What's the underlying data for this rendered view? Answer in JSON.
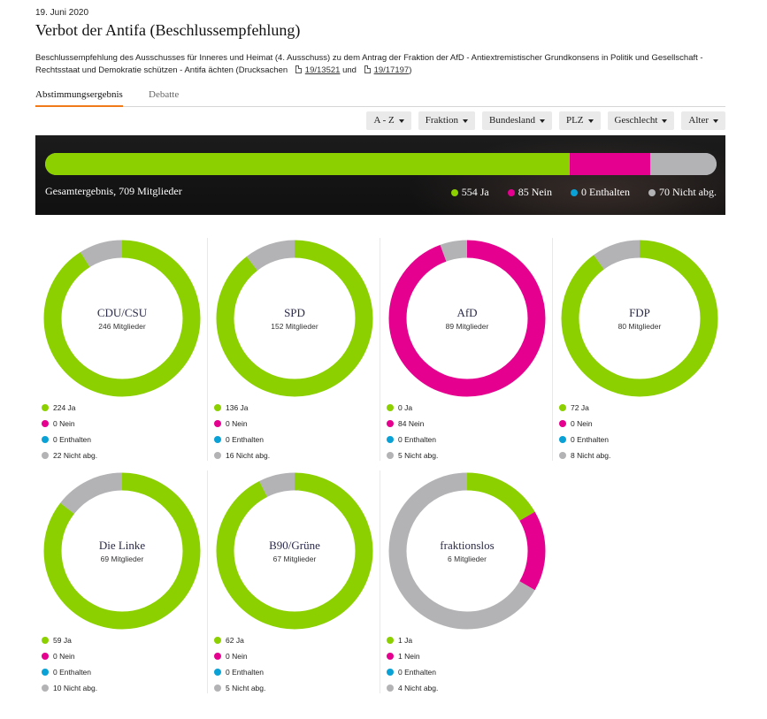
{
  "header": {
    "date": "19. Juni 2020",
    "title": "Verbot der Antifa (Beschlussempfehlung)",
    "description": "Beschlussempfehlung des Ausschusses für Inneres und Heimat (4. Ausschuss) zu dem Antrag der Fraktion der AfD - Antiextremistischer Grundkonsens in Politik und Gesellschaft - Rechtsstaat und Demokratie schützen - Antifa ächten (Drucksachen",
    "doc1": "19/13521",
    "doc_sep": "und",
    "doc2": "19/17197",
    "desc_end": ")"
  },
  "tabs": [
    {
      "label": "Abstimmungsergebnis",
      "active": true
    },
    {
      "label": "Debatte",
      "active": false
    }
  ],
  "filters": [
    "A - Z",
    "Fraktion",
    "Bundesland",
    "PLZ",
    "Geschlecht",
    "Alter"
  ],
  "colors": {
    "ja": "#8cd000",
    "nein": "#e5008f",
    "enthalten": "#0aa2d6",
    "nicht": "#b3b3b5"
  },
  "legend_labels": {
    "ja": "Ja",
    "nein": "Nein",
    "enthalten": "Enthalten",
    "nicht": "Nicht abg."
  },
  "members_suffix": "Mitglieder",
  "total": {
    "label": "Gesamtergebnis, 709 Mitglieder",
    "ja": 554,
    "nein": 85,
    "enthalten": 0,
    "nicht": 70,
    "ja_text": "554 Ja",
    "nein_text": "85 Nein",
    "enthalten_text": "0 Enthalten",
    "nicht_text": "70 Nicht abg."
  },
  "chart_data": {
    "type": "pie",
    "variant": "donut",
    "categories": [
      "Ja",
      "Nein",
      "Enthalten",
      "Nicht abg."
    ],
    "series": [
      {
        "name": "CDU/CSU",
        "members": 246,
        "values": [
          224,
          0,
          0,
          22
        ]
      },
      {
        "name": "SPD",
        "members": 152,
        "values": [
          136,
          0,
          0,
          16
        ]
      },
      {
        "name": "AfD",
        "members": 89,
        "values": [
          0,
          84,
          0,
          5
        ]
      },
      {
        "name": "FDP",
        "members": 80,
        "values": [
          72,
          0,
          0,
          8
        ]
      },
      {
        "name": "Die Linke",
        "members": 69,
        "values": [
          59,
          0,
          0,
          10
        ]
      },
      {
        "name": "B90/Grüne",
        "members": 67,
        "values": [
          62,
          0,
          0,
          5
        ]
      },
      {
        "name": "fraktionslos",
        "members": 6,
        "values": [
          1,
          1,
          0,
          4
        ]
      }
    ]
  }
}
